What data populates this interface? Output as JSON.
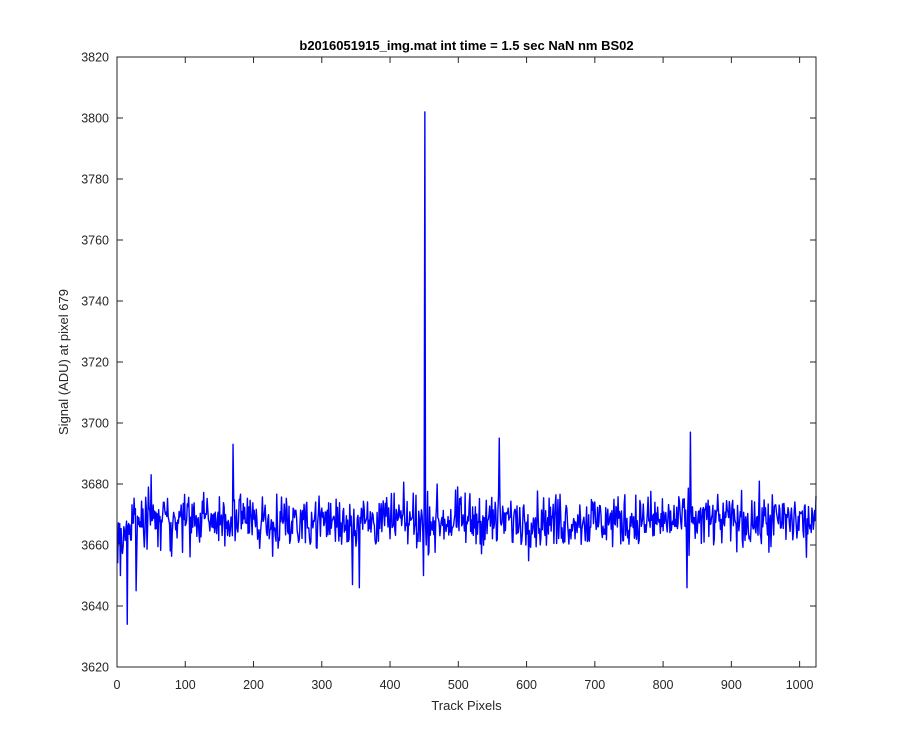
{
  "chart_data": {
    "type": "line",
    "title": "b2016051915_img.mat int time = 1.5 sec  NaN nm BS02",
    "xlabel": "Track Pixels",
    "ylabel": "Signal (ADU) at pixel 679",
    "xlim": [
      0,
      1024
    ],
    "ylim": [
      3620,
      3820
    ],
    "xticks": [
      0,
      100,
      200,
      300,
      400,
      500,
      600,
      700,
      800,
      900,
      1000
    ],
    "yticks": [
      3620,
      3640,
      3660,
      3680,
      3700,
      3720,
      3740,
      3760,
      3780,
      3800,
      3820
    ],
    "grid": false,
    "legend": "none",
    "series": [
      {
        "name": "",
        "color": "#0000ff",
        "baseline": 3668,
        "noise_amplitude": 8,
        "x_range": [
          1,
          1024
        ],
        "key_points": [
          {
            "x": 1,
            "y": 3654
          },
          {
            "x": 5,
            "y": 3650
          },
          {
            "x": 10,
            "y": 3666
          },
          {
            "x": 15,
            "y": 3634
          },
          {
            "x": 28,
            "y": 3645
          },
          {
            "x": 50,
            "y": 3683
          },
          {
            "x": 170,
            "y": 3693
          },
          {
            "x": 345,
            "y": 3647
          },
          {
            "x": 355,
            "y": 3646
          },
          {
            "x": 449,
            "y": 3650
          },
          {
            "x": 451,
            "y": 3802
          },
          {
            "x": 453,
            "y": 3660
          },
          {
            "x": 560,
            "y": 3695
          },
          {
            "x": 835,
            "y": 3646
          },
          {
            "x": 840,
            "y": 3697
          },
          {
            "x": 1010,
            "y": 3656
          },
          {
            "x": 1024,
            "y": 3676
          }
        ]
      }
    ]
  }
}
